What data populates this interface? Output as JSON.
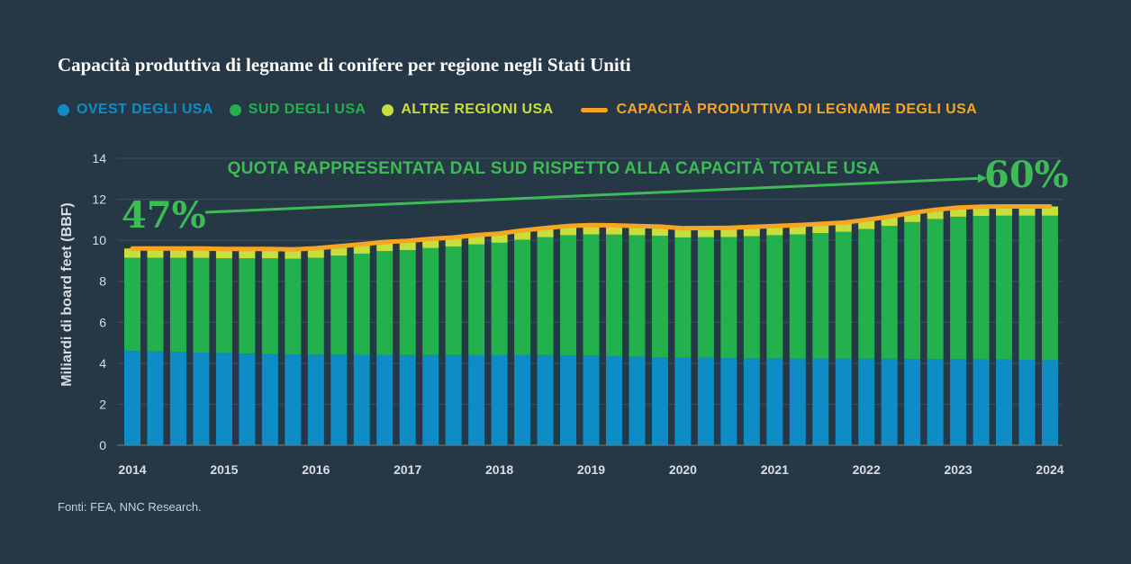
{
  "title": "Capacità produttiva di legname di conifere per regione negli Stati Uniti",
  "legend": [
    {
      "label": "OVEST DEGLI USA",
      "color": "#0e8cc6",
      "kind": "dot"
    },
    {
      "label": "SUD DEGLI USA",
      "color": "#22b14c",
      "kind": "dot"
    },
    {
      "label": "ALTRE REGIONI USA",
      "color": "#c7de3c",
      "kind": "dot"
    },
    {
      "label": "CAPACITÀ PRODUTTIVA DI LEGNAME DEGLI USA",
      "color": "#f5a623",
      "kind": "line"
    }
  ],
  "annotation": {
    "text": "QUOTA RAPPRESENTATA DAL SUD RISPETTO ALLA CAPACITÀ TOTALE USA",
    "start_label": "47%",
    "end_label": "60%",
    "color": "#3dbb55"
  },
  "source": "Fonti: FEA, NNC Research.",
  "chart_data": {
    "type": "bar",
    "stacked": true,
    "ylabel": "Miliardi di board feet (BBF)",
    "xlabel": "",
    "ylim": [
      0,
      14
    ],
    "yticks": [
      0,
      2,
      4,
      6,
      8,
      10,
      12,
      14
    ],
    "xticks": [
      "2014",
      "2015",
      "2016",
      "2017",
      "2018",
      "2019",
      "2020",
      "2021",
      "2022",
      "2023",
      "2024"
    ],
    "xrange": [
      2014,
      2024
    ],
    "x": [
      2014.0,
      2014.25,
      2014.5,
      2014.75,
      2015.0,
      2015.25,
      2015.5,
      2015.75,
      2016.0,
      2016.25,
      2016.5,
      2016.75,
      2017.0,
      2017.25,
      2017.5,
      2017.75,
      2018.0,
      2018.25,
      2018.5,
      2018.75,
      2019.0,
      2019.25,
      2019.5,
      2019.75,
      2020.0,
      2020.25,
      2020.5,
      2020.75,
      2021.0,
      2021.25,
      2021.5,
      2021.75,
      2022.0,
      2022.25,
      2022.5,
      2022.75,
      2023.0,
      2023.25,
      2023.5,
      2023.75,
      2024.0
    ],
    "series": [
      {
        "name": "OVEST DEGLI USA",
        "color": "#0e8cc6",
        "values": [
          4.6,
          4.58,
          4.55,
          4.52,
          4.5,
          4.47,
          4.45,
          4.43,
          4.42,
          4.42,
          4.41,
          4.41,
          4.4,
          4.4,
          4.4,
          4.41,
          4.41,
          4.41,
          4.4,
          4.39,
          4.38,
          4.35,
          4.32,
          4.3,
          4.28,
          4.26,
          4.25,
          4.24,
          4.24,
          4.23,
          4.23,
          4.23,
          4.23,
          4.22,
          4.21,
          4.2,
          4.2,
          4.19,
          4.18,
          4.17,
          4.16
        ]
      },
      {
        "name": "SUD DEGLI USA",
        "color": "#22b14c",
        "values": [
          4.55,
          4.57,
          4.6,
          4.62,
          4.62,
          4.65,
          4.67,
          4.67,
          4.73,
          4.83,
          4.94,
          5.06,
          5.12,
          5.22,
          5.29,
          5.39,
          5.47,
          5.62,
          5.75,
          5.86,
          5.91,
          5.93,
          5.93,
          5.92,
          5.86,
          5.89,
          5.91,
          5.96,
          6.01,
          6.06,
          6.12,
          6.18,
          6.32,
          6.48,
          6.68,
          6.84,
          6.95,
          7.0,
          7.02,
          7.03,
          7.04
        ]
      },
      {
        "name": "ALTRE REGIONI USA",
        "color": "#c7de3c",
        "values": [
          0.45,
          0.45,
          0.45,
          0.46,
          0.46,
          0.46,
          0.46,
          0.46,
          0.46,
          0.46,
          0.46,
          0.45,
          0.45,
          0.45,
          0.45,
          0.45,
          0.45,
          0.45,
          0.45,
          0.45,
          0.45,
          0.45,
          0.45,
          0.45,
          0.45,
          0.45,
          0.45,
          0.45,
          0.45,
          0.45,
          0.45,
          0.45,
          0.45,
          0.45,
          0.45,
          0.45,
          0.45,
          0.45,
          0.45,
          0.45,
          0.45
        ]
      },
      {
        "name": "CAPACITÀ PRODUTTIVA DI LEGNAME DEGLI USA",
        "color": "#f5a623",
        "type": "line",
        "values": [
          9.6,
          9.6,
          9.6,
          9.6,
          9.58,
          9.58,
          9.58,
          9.56,
          9.61,
          9.71,
          9.81,
          9.92,
          9.97,
          10.07,
          10.14,
          10.25,
          10.33,
          10.48,
          10.6,
          10.7,
          10.74,
          10.73,
          10.7,
          10.67,
          10.59,
          10.6,
          10.61,
          10.65,
          10.7,
          10.74,
          10.8,
          10.86,
          11.0,
          11.15,
          11.34,
          11.49,
          11.6,
          11.64,
          11.65,
          11.65,
          11.65
        ]
      }
    ]
  }
}
